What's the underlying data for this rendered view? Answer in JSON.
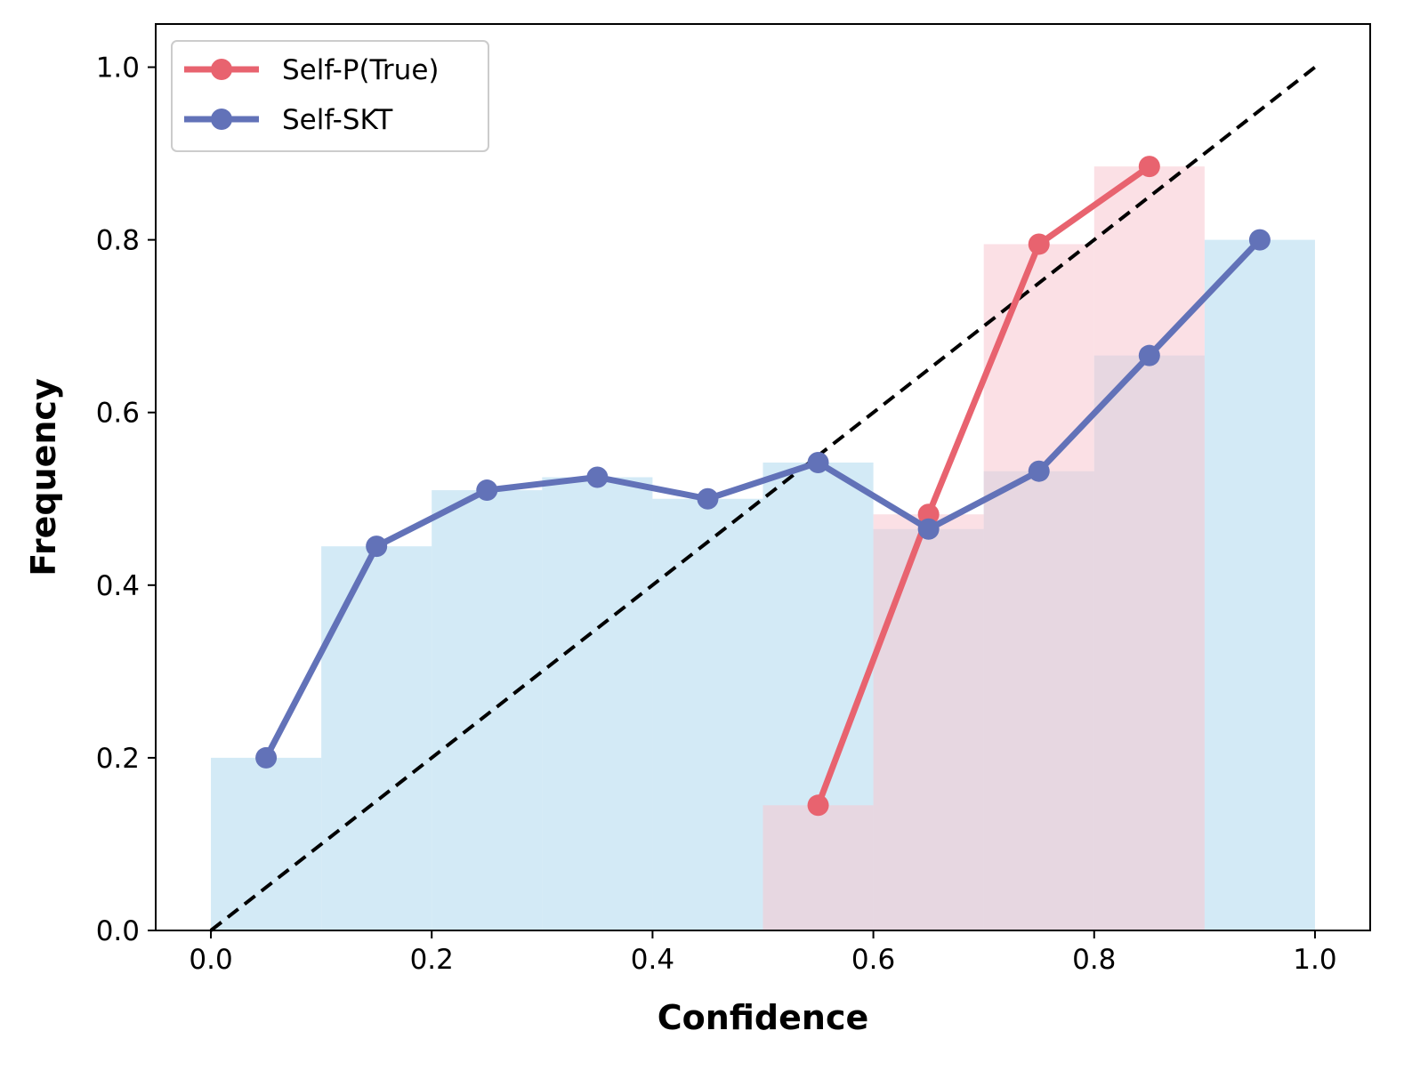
{
  "chart_data": {
    "type": "bar",
    "xlabel": "Confidence",
    "ylabel": "Frequency",
    "xlim": [
      -0.05,
      1.05
    ],
    "ylim": [
      0.0,
      1.05
    ],
    "xticks": [
      "0.0",
      "0.2",
      "0.4",
      "0.6",
      "0.8",
      "1.0"
    ],
    "yticks": [
      "0.0",
      "0.2",
      "0.4",
      "0.6",
      "0.8",
      "1.0"
    ],
    "grid": false,
    "legend_position": "top-left",
    "bin_edges": [
      0.0,
      0.1,
      0.2,
      0.3,
      0.4,
      0.5,
      0.6,
      0.7,
      0.8,
      0.9,
      1.0
    ],
    "bin_centers": [
      0.05,
      0.15,
      0.25,
      0.35,
      0.45,
      0.55,
      0.65,
      0.75,
      0.85,
      0.95
    ],
    "series": [
      {
        "name": "Self-P(True)",
        "color": "#E8636F",
        "bar_color": "#F7C6D0",
        "values": [
          null,
          null,
          null,
          null,
          null,
          0.145,
          0.482,
          0.795,
          0.885,
          null
        ]
      },
      {
        "name": "Self-SKT",
        "color": "#6272B8",
        "bar_color": "#AED8EE",
        "values": [
          0.2,
          0.445,
          0.51,
          0.525,
          0.5,
          0.542,
          0.465,
          0.532,
          0.666,
          0.8
        ]
      }
    ],
    "reference_line": {
      "from": [
        0,
        0
      ],
      "to": [
        1,
        1
      ],
      "style": "dashed",
      "color": "#000000"
    }
  }
}
